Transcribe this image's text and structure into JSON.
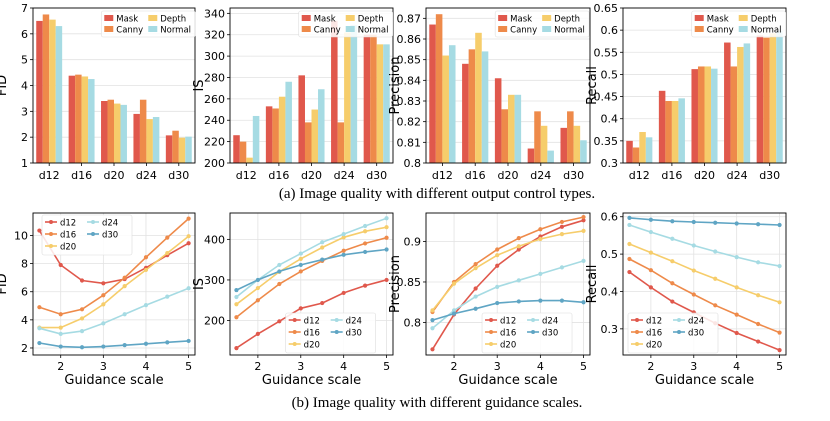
{
  "colors": {
    "d12": "#e0584c",
    "d16": "#ee8a4a",
    "d20": "#f6cd6b",
    "d24": "#a6dbe3",
    "d30": "#5fa5c4",
    "Mask": "#e0584c",
    "Canny": "#ee8a4a",
    "Depth": "#f6cd6b",
    "Normal": "#a6dbe3"
  },
  "captions": {
    "top": "(a) Image quality with different output control types.",
    "bottom": "(b) Image quality with different guidance scales."
  },
  "chart_data": [
    {
      "type": "bar",
      "row": 0,
      "col": 0,
      "categories": [
        "d12",
        "d16",
        "d20",
        "d24",
        "d30"
      ],
      "series": [
        {
          "name": "Mask",
          "values": [
            6.5,
            4.38,
            3.4,
            2.9,
            2.07
          ]
        },
        {
          "name": "Canny",
          "values": [
            6.75,
            4.42,
            3.45,
            3.45,
            2.25
          ]
        },
        {
          "name": "Depth",
          "values": [
            6.55,
            4.35,
            3.3,
            2.7,
            1.98
          ]
        },
        {
          "name": "Normal",
          "values": [
            6.3,
            4.25,
            3.25,
            2.78,
            2.02
          ]
        }
      ],
      "ylabel": "FID",
      "ylim": [
        1,
        7
      ],
      "yticks": [
        1,
        2,
        3,
        4,
        5,
        6,
        7
      ],
      "legend_cols": [
        [
          "Mask",
          "Canny"
        ],
        [
          "Depth",
          "Normal"
        ]
      ]
    },
    {
      "type": "bar",
      "row": 0,
      "col": 1,
      "categories": [
        "d12",
        "d16",
        "d20",
        "d24",
        "d30"
      ],
      "series": [
        {
          "name": "Mask",
          "values": [
            226,
            253,
            282,
            333,
            320
          ]
        },
        {
          "name": "Canny",
          "values": [
            220,
            251,
            238,
            238,
            320
          ]
        },
        {
          "name": "Depth",
          "values": [
            205,
            262,
            250,
            322,
            311
          ]
        },
        {
          "name": "Normal",
          "values": [
            244,
            276,
            269,
            329,
            311
          ]
        }
      ],
      "ylabel": "IS",
      "ylim": [
        200,
        345
      ],
      "yticks": [
        200,
        220,
        240,
        260,
        280,
        300,
        320,
        340
      ],
      "legend_cols": [
        [
          "Mask",
          "Canny"
        ],
        [
          "Depth",
          "Normal"
        ]
      ]
    },
    {
      "type": "bar",
      "row": 0,
      "col": 2,
      "categories": [
        "d12",
        "d16",
        "d20",
        "d24",
        "d30"
      ],
      "series": [
        {
          "name": "Mask",
          "values": [
            0.867,
            0.848,
            0.841,
            0.807,
            0.817
          ]
        },
        {
          "name": "Canny",
          "values": [
            0.872,
            0.855,
            0.826,
            0.825,
            0.825
          ]
        },
        {
          "name": "Depth",
          "values": [
            0.852,
            0.863,
            0.833,
            0.818,
            0.818
          ]
        },
        {
          "name": "Normal",
          "values": [
            0.857,
            0.854,
            0.833,
            0.806,
            0.811
          ]
        }
      ],
      "ylabel": "Precision",
      "ylim": [
        0.8,
        0.875
      ],
      "yticks": [
        0.8,
        0.81,
        0.82,
        0.83,
        0.84,
        0.85,
        0.86,
        0.87
      ],
      "legend_cols": [
        [
          "Mask",
          "Canny"
        ],
        [
          "Depth",
          "Normal"
        ]
      ]
    },
    {
      "type": "bar",
      "row": 0,
      "col": 3,
      "categories": [
        "d12",
        "d16",
        "d20",
        "d24",
        "d30"
      ],
      "series": [
        {
          "name": "Mask",
          "values": [
            0.35,
            0.463,
            0.512,
            0.572,
            0.588
          ]
        },
        {
          "name": "Canny",
          "values": [
            0.335,
            0.44,
            0.518,
            0.518,
            0.583
          ]
        },
        {
          "name": "Depth",
          "values": [
            0.37,
            0.44,
            0.518,
            0.562,
            0.593
          ]
        },
        {
          "name": "Normal",
          "values": [
            0.358,
            0.446,
            0.513,
            0.57,
            0.598
          ]
        }
      ],
      "ylabel": "Recall",
      "ylim": [
        0.3,
        0.65
      ],
      "yticks": [
        0.3,
        0.35,
        0.4,
        0.45,
        0.5,
        0.55,
        0.6,
        0.65
      ],
      "legend_cols": [
        [
          "Mask",
          "Canny"
        ],
        [
          "Depth",
          "Normal"
        ]
      ]
    },
    {
      "type": "line",
      "row": 1,
      "col": 0,
      "x": [
        1.5,
        2,
        2.5,
        3,
        3.5,
        4,
        4.5,
        5
      ],
      "series": [
        {
          "name": "d12",
          "values": [
            10.35,
            7.9,
            6.8,
            6.6,
            6.9,
            7.7,
            8.6,
            9.45
          ]
        },
        {
          "name": "d16",
          "values": [
            4.9,
            4.4,
            4.75,
            5.75,
            7.0,
            8.45,
            9.85,
            11.2
          ]
        },
        {
          "name": "d20",
          "values": [
            3.45,
            3.45,
            4.1,
            5.1,
            6.4,
            7.55,
            8.75,
            9.95
          ]
        },
        {
          "name": "d24",
          "values": [
            3.4,
            3.0,
            3.2,
            3.75,
            4.4,
            5.05,
            5.65,
            6.25
          ]
        },
        {
          "name": "d30",
          "values": [
            2.35,
            2.1,
            2.05,
            2.1,
            2.2,
            2.3,
            2.4,
            2.5
          ]
        }
      ],
      "xlabel": "Guidance scale",
      "ylabel": "FID",
      "xlim": [
        1.35,
        5.15
      ],
      "ylim": [
        1.5,
        11.6
      ],
      "xticks": [
        2,
        3,
        4,
        5
      ],
      "yticks": [
        2,
        4,
        6,
        8,
        10
      ],
      "legend_cols": [
        [
          "d12",
          "d16",
          "d20"
        ],
        [
          "d24",
          "d30"
        ]
      ]
    },
    {
      "type": "line",
      "row": 1,
      "col": 1,
      "x": [
        1.5,
        2,
        2.5,
        3,
        3.5,
        4,
        4.5,
        5
      ],
      "series": [
        {
          "name": "d12",
          "values": [
            132,
            167,
            198,
            230,
            243,
            268,
            286,
            300
          ]
        },
        {
          "name": "d16",
          "values": [
            208,
            250,
            290,
            321,
            347,
            372,
            390,
            404
          ]
        },
        {
          "name": "d20",
          "values": [
            240,
            280,
            320,
            352,
            380,
            405,
            420,
            430
          ]
        },
        {
          "name": "d24",
          "values": [
            258,
            300,
            337,
            365,
            393,
            413,
            433,
            452
          ]
        },
        {
          "name": "d30",
          "values": [
            275,
            300,
            321,
            337,
            350,
            362,
            369,
            375
          ]
        }
      ],
      "xlabel": "Guidance scale",
      "ylabel": "IS",
      "xlim": [
        1.35,
        5.15
      ],
      "ylim": [
        115,
        465
      ],
      "xticks": [
        2,
        3,
        4,
        5
      ],
      "yticks": [
        200,
        300,
        400
      ],
      "legend_cols": [
        [
          "d12",
          "d16",
          "d20"
        ],
        [
          "d24",
          "d30"
        ]
      ]
    },
    {
      "type": "line",
      "row": 1,
      "col": 2,
      "x": [
        1.5,
        2,
        2.5,
        3,
        3.5,
        4,
        4.5,
        5
      ],
      "series": [
        {
          "name": "d12",
          "values": [
            0.767,
            0.81,
            0.842,
            0.87,
            0.89,
            0.906,
            0.918,
            0.926
          ]
        },
        {
          "name": "d16",
          "values": [
            0.813,
            0.85,
            0.872,
            0.89,
            0.904,
            0.915,
            0.924,
            0.93
          ]
        },
        {
          "name": "d20",
          "values": [
            0.815,
            0.848,
            0.867,
            0.883,
            0.894,
            0.903,
            0.909,
            0.913
          ]
        },
        {
          "name": "d24",
          "values": [
            0.793,
            0.815,
            0.832,
            0.844,
            0.852,
            0.86,
            0.868,
            0.876
          ]
        },
        {
          "name": "d30",
          "values": [
            0.803,
            0.811,
            0.817,
            0.824,
            0.826,
            0.827,
            0.827,
            0.825
          ]
        }
      ],
      "xlabel": "Guidance scale",
      "ylabel": "Precision",
      "xlim": [
        1.35,
        5.15
      ],
      "ylim": [
        0.76,
        0.935
      ],
      "xticks": [
        2,
        3,
        4,
        5
      ],
      "yticks": [
        0.8,
        0.85,
        0.9
      ],
      "legend_cols": [
        [
          "d12",
          "d16",
          "d20"
        ],
        [
          "d24",
          "d30"
        ]
      ]
    },
    {
      "type": "line",
      "row": 1,
      "col": 3,
      "x": [
        1.5,
        2,
        2.5,
        3,
        3.5,
        4,
        4.5,
        5
      ],
      "series": [
        {
          "name": "d12",
          "values": [
            0.452,
            0.411,
            0.373,
            0.344,
            0.315,
            0.289,
            0.266,
            0.243
          ]
        },
        {
          "name": "d16",
          "values": [
            0.487,
            0.457,
            0.422,
            0.392,
            0.363,
            0.338,
            0.313,
            0.29
          ]
        },
        {
          "name": "d20",
          "values": [
            0.527,
            0.504,
            0.481,
            0.456,
            0.434,
            0.411,
            0.39,
            0.371
          ]
        },
        {
          "name": "d24",
          "values": [
            0.578,
            0.559,
            0.541,
            0.523,
            0.507,
            0.492,
            0.478,
            0.468
          ]
        },
        {
          "name": "d30",
          "values": [
            0.597,
            0.592,
            0.588,
            0.586,
            0.584,
            0.582,
            0.58,
            0.578
          ]
        }
      ],
      "xlabel": "Guidance scale",
      "ylabel": "Recall",
      "xlim": [
        1.35,
        5.15
      ],
      "ylim": [
        0.23,
        0.61
      ],
      "xticks": [
        2,
        3,
        4,
        5
      ],
      "yticks": [
        0.3,
        0.4,
        0.5,
        0.6
      ],
      "legend_cols": [
        [
          "d12",
          "d16",
          "d20"
        ],
        [
          "d24",
          "d30"
        ]
      ]
    }
  ]
}
